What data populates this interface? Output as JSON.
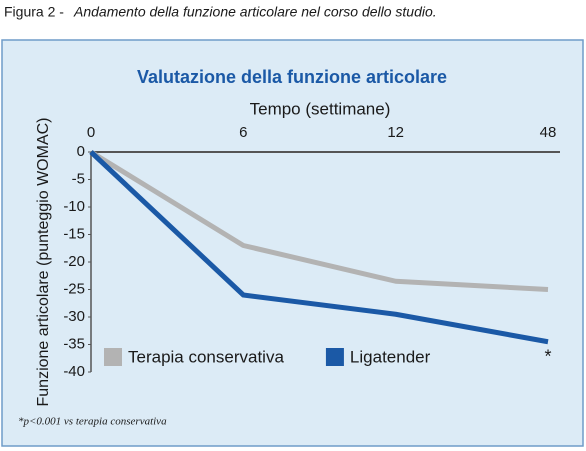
{
  "caption": {
    "label": "Figura 2 -",
    "text": "Andamento della funzione articolare nel corso dello studio."
  },
  "chart_data": {
    "type": "line",
    "title": "Valutazione della funzione articolare",
    "x_label": "Tempo (settimane)",
    "y_label": "Funzione articolare (punteggio WOMAC)",
    "categories": [
      "0",
      "6",
      "12",
      "48"
    ],
    "series": [
      {
        "name": "Terapia conservativa",
        "color": "#b3b3b3",
        "values": [
          0,
          -17,
          -23.5,
          -25
        ]
      },
      {
        "name": "Ligatender",
        "color": "#1b59a6",
        "values": [
          0,
          -26,
          -29.5,
          -34.5
        ]
      }
    ],
    "ylim": [
      -40,
      0
    ],
    "yticks": [
      0,
      -5,
      -10,
      -15,
      -20,
      -25,
      -30,
      -35,
      -40
    ],
    "legend": "bottom",
    "annotation": "*",
    "footnote": "*p<0.001 vs terapia conservativa"
  }
}
